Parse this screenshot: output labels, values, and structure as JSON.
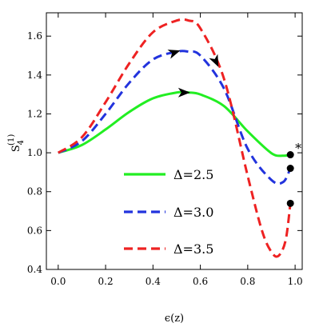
{
  "chart_data": {
    "type": "line",
    "title": "",
    "xlabel": "ϵ(z)",
    "ylabel": {
      "base": "S",
      "subscript": "4",
      "superscript": "(1)"
    },
    "xlim": [
      -0.05,
      1.03
    ],
    "ylim": [
      0.4,
      1.72
    ],
    "xticks": [
      0.0,
      0.2,
      0.4,
      0.6,
      0.8,
      1.0
    ],
    "xtick_labels": [
      "0.0",
      "0.2",
      "0.4",
      "0.6",
      "0.8",
      "1.0"
    ],
    "yticks": [
      0.4,
      0.6,
      0.8,
      1.0,
      1.2,
      1.4,
      1.6
    ],
    "ytick_labels": [
      "0.4",
      "0.6",
      "0.8",
      "1.0",
      "1.2",
      "1.4",
      "1.6"
    ],
    "grid": false,
    "legend_position": "lower-center",
    "series": [
      {
        "name": "Δ=2.5",
        "color": "#22ee22",
        "dash": "solid",
        "x": [
          0.0,
          0.1,
          0.2,
          0.3,
          0.4,
          0.5,
          0.55,
          0.6,
          0.7,
          0.8,
          0.9,
          0.95,
          0.98
        ],
        "y": [
          1.0,
          1.04,
          1.12,
          1.21,
          1.28,
          1.31,
          1.31,
          1.3,
          1.24,
          1.11,
          0.998,
          0.985,
          0.99
        ],
        "arrow_at_x": 0.53,
        "endpoint": {
          "x": 0.98,
          "y": 0.99
        }
      },
      {
        "name": "Δ=3.0",
        "color": "#2233dd",
        "dash": "dashed",
        "x": [
          0.0,
          0.1,
          0.2,
          0.3,
          0.4,
          0.5,
          0.55,
          0.6,
          0.7,
          0.8,
          0.9,
          0.95,
          0.98
        ],
        "y": [
          1.0,
          1.06,
          1.2,
          1.36,
          1.48,
          1.52,
          1.52,
          1.5,
          1.33,
          1.02,
          0.86,
          0.85,
          0.92
        ],
        "arrow_at_x": 0.49,
        "endpoint": {
          "x": 0.98,
          "y": 0.92
        }
      },
      {
        "name": "Δ=3.5",
        "color": "#ee2222",
        "dash": "dashed",
        "x": [
          0.0,
          0.1,
          0.2,
          0.3,
          0.4,
          0.5,
          0.55,
          0.6,
          0.7,
          0.8,
          0.86,
          0.9,
          0.93,
          0.96,
          0.98
        ],
        "y": [
          1.0,
          1.08,
          1.26,
          1.46,
          1.62,
          1.68,
          1.68,
          1.64,
          1.38,
          0.88,
          0.6,
          0.49,
          0.47,
          0.55,
          0.74
        ],
        "arrow_at_x": 0.665,
        "endpoint": {
          "x": 0.98,
          "y": 0.74
        }
      }
    ],
    "annotations": [
      {
        "text": "*",
        "x": 1.0,
        "y": 1.0
      }
    ]
  }
}
